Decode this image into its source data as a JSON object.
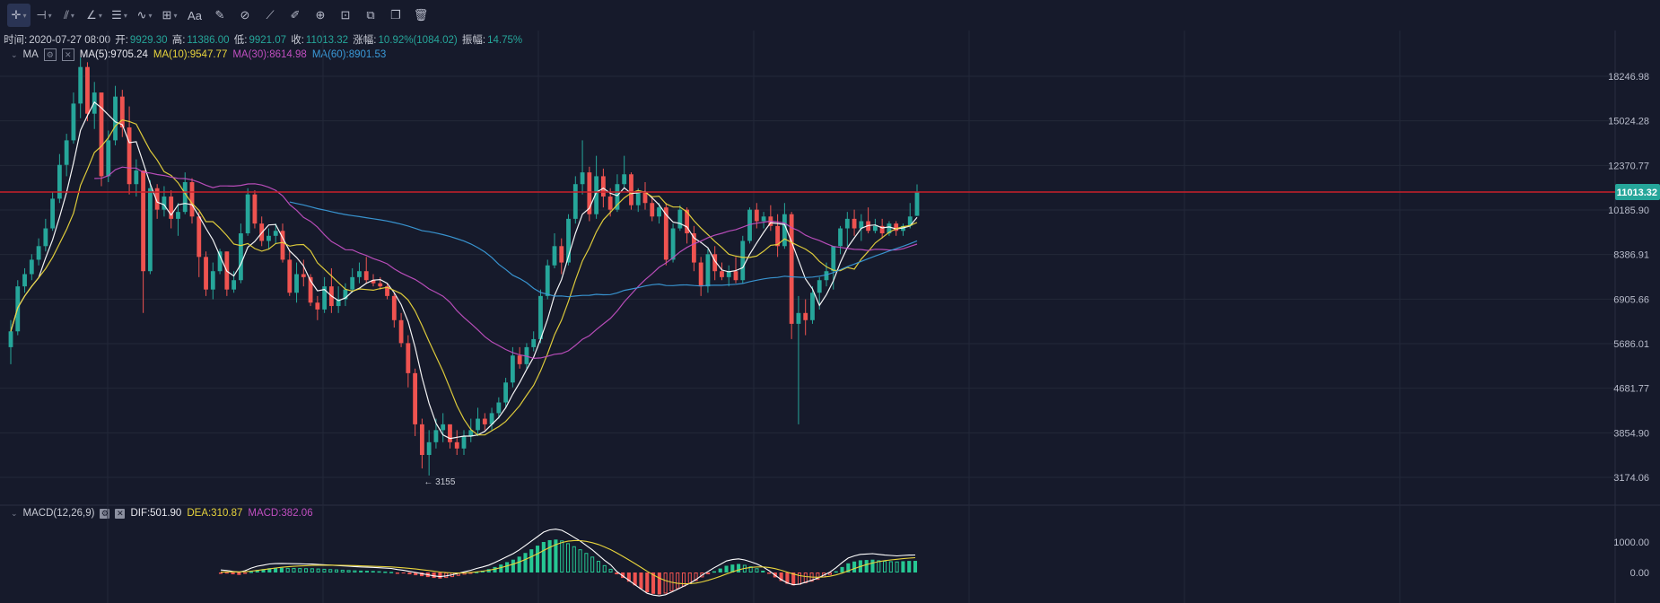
{
  "toolbar": {
    "items": [
      {
        "name": "crosshair-icon",
        "glyph": "✛",
        "dropdown": true
      },
      {
        "name": "horizontal-line-icon",
        "glyph": "⊣",
        "dropdown": true
      },
      {
        "name": "trend-lines-icon",
        "glyph": "⫽",
        "dropdown": true
      },
      {
        "name": "angle-icon",
        "glyph": "∠",
        "dropdown": true
      },
      {
        "name": "fib-lines-icon",
        "glyph": "☰",
        "dropdown": true
      },
      {
        "name": "patterns-icon",
        "glyph": "∿",
        "dropdown": true
      },
      {
        "name": "measure-icon",
        "glyph": "⊞",
        "dropdown": true
      },
      {
        "name": "text-icon",
        "glyph": "Aa",
        "dropdown": false
      },
      {
        "name": "brush-icon",
        "glyph": "✎",
        "dropdown": false
      },
      {
        "name": "magnet-icon",
        "glyph": "⊘",
        "dropdown": false
      },
      {
        "name": "ruler-icon",
        "glyph": "⟋",
        "dropdown": false
      },
      {
        "name": "pencil-icon",
        "glyph": "✐",
        "dropdown": false
      },
      {
        "name": "eye-icon",
        "glyph": "⊕",
        "dropdown": false
      },
      {
        "name": "lock-icon",
        "glyph": "⊡",
        "dropdown": false
      },
      {
        "name": "copy-icon",
        "glyph": "⧉",
        "dropdown": false
      },
      {
        "name": "duplicate-icon",
        "glyph": "❐",
        "dropdown": false
      },
      {
        "name": "trash-icon",
        "glyph": "🗑",
        "dropdown": false
      }
    ]
  },
  "info": {
    "time_label": "时间:",
    "time_value": "2020-07-27 08:00",
    "open_label": "开:",
    "open_value": "9929.30",
    "high_label": "高:",
    "high_value": "11386.00",
    "low_label": "低:",
    "low_value": "9921.07",
    "close_label": "收:",
    "close_value": "11013.32",
    "change_label": "涨幅:",
    "change_value": "10.92%(1084.02)",
    "amplitude_label": "振幅:",
    "amplitude_value": "14.75%"
  },
  "ma_legend": {
    "label": "MA",
    "ma5": "MA(5):9705.24",
    "ma10": "MA(10):9547.77",
    "ma30": "MA(30):8614.98",
    "ma60": "MA(60):8901.53"
  },
  "macd_legend": {
    "label": "MACD(12,26,9)",
    "dif": "DIF:501.90",
    "dea": "DEA:310.87",
    "macd": "MACD:382.06"
  },
  "colors": {
    "up": "#26a69a",
    "down": "#ef5350",
    "ma5": "#ffffff",
    "ma10": "#e8d43c",
    "ma30": "#c04fc0",
    "ma60": "#3a9ad8",
    "price_line": "#c8202a",
    "grid": "#232839",
    "macd_up": "#26c793",
    "macd_down": "#ef5350"
  },
  "chart_data": [
    {
      "type": "candlestick",
      "title": "",
      "y_ticks": [
        18246.98,
        15024.28,
        12370.77,
        10185.9,
        8386.91,
        6905.66,
        5686.01,
        4681.77,
        3854.9,
        3174.06
      ],
      "current_price_label": "11013.32",
      "current_price": 11013.32,
      "low_marker": "3155",
      "scale": "log",
      "ohlc_weekly": [
        [
          5600,
          6300,
          5200,
          6000
        ],
        [
          6000,
          7500,
          5900,
          7300
        ],
        [
          7300,
          7900,
          7100,
          7700
        ],
        [
          7700,
          8400,
          7500,
          8200
        ],
        [
          8200,
          9000,
          8000,
          8700
        ],
        [
          8700,
          9800,
          8500,
          9400
        ],
        [
          9400,
          11000,
          9300,
          10700
        ],
        [
          10700,
          13000,
          10500,
          12400
        ],
        [
          12400,
          14200,
          11800,
          13800
        ],
        [
          13800,
          17000,
          13600,
          16200
        ],
        [
          16200,
          19800,
          15200,
          19000
        ],
        [
          19000,
          19400,
          15000,
          15500
        ],
        [
          15500,
          17800,
          14500,
          17000
        ],
        [
          17000,
          16500,
          11300,
          11800
        ],
        [
          11800,
          14400,
          11500,
          13800
        ],
        [
          13800,
          17500,
          13500,
          16700
        ],
        [
          16700,
          17200,
          14000,
          14600
        ],
        [
          14600,
          16000,
          10900,
          11400
        ],
        [
          11400,
          12700,
          10800,
          12100
        ],
        [
          12100,
          11700,
          6500,
          7800
        ],
        [
          7800,
          11600,
          7700,
          11200
        ],
        [
          11200,
          11400,
          9800,
          10200
        ],
        [
          10200,
          11300,
          9900,
          10800
        ],
        [
          10800,
          11100,
          9400,
          9800
        ],
        [
          9800,
          10500,
          9100,
          10100
        ],
        [
          10100,
          12000,
          10000,
          11500
        ],
        [
          11500,
          11700,
          9600,
          9900
        ],
        [
          9900,
          10100,
          7600,
          8300
        ],
        [
          8300,
          8500,
          7000,
          7200
        ],
        [
          7200,
          8100,
          6900,
          7800
        ],
        [
          7800,
          8600,
          7700,
          8500
        ],
        [
          8500,
          8500,
          7000,
          7200
        ],
        [
          7200,
          7800,
          7100,
          7500
        ],
        [
          7500,
          9600,
          7400,
          9200
        ],
        [
          9200,
          11200,
          9100,
          10900
        ],
        [
          10900,
          11100,
          9400,
          9600
        ],
        [
          9600,
          9900,
          8700,
          8900
        ],
        [
          8900,
          9400,
          8600,
          9100
        ],
        [
          9100,
          9600,
          8800,
          9300
        ],
        [
          9300,
          9600,
          8100,
          8200
        ],
        [
          8200,
          8500,
          7000,
          7100
        ],
        [
          7100,
          8100,
          6800,
          7700
        ],
        [
          7700,
          8200,
          7300,
          7600
        ],
        [
          7600,
          7700,
          6700,
          6800
        ],
        [
          6800,
          7000,
          6300,
          6600
        ],
        [
          6600,
          7600,
          6500,
          7300
        ],
        [
          7300,
          7900,
          6500,
          6700
        ],
        [
          6700,
          7300,
          6500,
          6900
        ],
        [
          6900,
          7400,
          6700,
          7200
        ],
        [
          7200,
          7900,
          7100,
          7600
        ],
        [
          7600,
          8100,
          7400,
          7800
        ],
        [
          7800,
          8300,
          7400,
          7500
        ],
        [
          7500,
          7700,
          7300,
          7400
        ],
        [
          7400,
          7600,
          7200,
          7300
        ],
        [
          7300,
          7400,
          6900,
          7000
        ],
        [
          7000,
          7100,
          6100,
          6300
        ],
        [
          6300,
          6500,
          5600,
          5700
        ],
        [
          5700,
          5900,
          4700,
          5000
        ],
        [
          5000,
          5100,
          3800,
          4000
        ],
        [
          4000,
          4100,
          3300,
          3500
        ],
        [
          3500,
          3900,
          3200,
          3700
        ],
        [
          3700,
          4100,
          3600,
          3900
        ],
        [
          3900,
          4200,
          3700,
          4000
        ],
        [
          4000,
          4000,
          3600,
          3700
        ],
        [
          3700,
          3900,
          3500,
          3600
        ],
        [
          3600,
          3900,
          3500,
          3800
        ],
        [
          3800,
          4100,
          3700,
          3900
        ],
        [
          3900,
          4300,
          3800,
          4100
        ],
        [
          4100,
          4200,
          3900,
          4000
        ],
        [
          4000,
          4300,
          3900,
          4200
        ],
        [
          4200,
          4500,
          4100,
          4400
        ],
        [
          4400,
          4900,
          4300,
          4800
        ],
        [
          4800,
          5600,
          4700,
          5400
        ],
        [
          5400,
          5600,
          5100,
          5200
        ],
        [
          5200,
          5700,
          5100,
          5600
        ],
        [
          5600,
          6000,
          5500,
          5800
        ],
        [
          5800,
          7200,
          5700,
          7000
        ],
        [
          7000,
          8200,
          6900,
          8000
        ],
        [
          8000,
          9200,
          7900,
          8700
        ],
        [
          8700,
          9000,
          7700,
          8100
        ],
        [
          8100,
          10000,
          8000,
          9800
        ],
        [
          9800,
          11800,
          9600,
          11400
        ],
        [
          11400,
          13800,
          10900,
          12000
        ],
        [
          12000,
          12300,
          9700,
          10000
        ],
        [
          10000,
          12900,
          9800,
          11800
        ],
        [
          11800,
          12200,
          10300,
          10800
        ],
        [
          10800,
          11200,
          9900,
          10200
        ],
        [
          10200,
          11900,
          10100,
          11400
        ],
        [
          11400,
          12900,
          11200,
          11900
        ],
        [
          11900,
          12000,
          10200,
          10400
        ],
        [
          10400,
          11200,
          10100,
          11000
        ],
        [
          11000,
          11500,
          10200,
          10500
        ],
        [
          10500,
          10800,
          9700,
          9900
        ],
        [
          9900,
          10500,
          9600,
          10300
        ],
        [
          10300,
          10500,
          8000,
          8200
        ],
        [
          8200,
          9600,
          8100,
          9400
        ],
        [
          9400,
          10400,
          9300,
          10200
        ],
        [
          10200,
          10300,
          8800,
          9200
        ],
        [
          9200,
          9500,
          7800,
          8100
        ],
        [
          8100,
          8300,
          7000,
          7300
        ],
        [
          7300,
          8600,
          7100,
          8400
        ],
        [
          8400,
          8700,
          7500,
          7800
        ],
        [
          7800,
          8100,
          7500,
          7600
        ],
        [
          7600,
          8000,
          7300,
          7800
        ],
        [
          7800,
          8300,
          7400,
          7500
        ],
        [
          7500,
          9100,
          7400,
          8900
        ],
        [
          8900,
          10300,
          8800,
          10200
        ],
        [
          10200,
          10500,
          9400,
          9700
        ],
        [
          9700,
          10100,
          9400,
          9900
        ],
        [
          9900,
          10400,
          9300,
          9500
        ],
        [
          9500,
          10000,
          8300,
          8700
        ],
        [
          8700,
          10500,
          8600,
          10000
        ],
        [
          10000,
          10100,
          5800,
          6200
        ],
        [
          6200,
          7000,
          4000,
          6500
        ],
        [
          6500,
          6900,
          5900,
          6300
        ],
        [
          6300,
          7300,
          6200,
          7100
        ],
        [
          7100,
          7600,
          6600,
          7500
        ],
        [
          7500,
          8100,
          7300,
          7800
        ],
        [
          7800,
          8000,
          7200,
          8700
        ],
        [
          8700,
          9500,
          8400,
          9400
        ],
        [
          9400,
          10100,
          8700,
          9800
        ],
        [
          9800,
          10200,
          9100,
          9400
        ],
        [
          9400,
          10000,
          8900,
          9700
        ],
        [
          9700,
          10300,
          9200,
          9300
        ],
        [
          9300,
          9800,
          9200,
          9500
        ],
        [
          9500,
          9800,
          9000,
          9200
        ],
        [
          9200,
          9700,
          9100,
          9600
        ],
        [
          9600,
          9700,
          9100,
          9300
        ],
        [
          9300,
          9600,
          9100,
          9500
        ],
        [
          9500,
          10500,
          9400,
          9900
        ],
        [
          9929.3,
          11386,
          9921.07,
          11013.32
        ]
      ]
    },
    {
      "type": "macd",
      "title": "MACD(12,26,9)",
      "y_ticks": [
        1000.0,
        0.0
      ],
      "histogram": [
        -20,
        -35,
        -60,
        -80,
        -40,
        30,
        80,
        110,
        140,
        150,
        155,
        150,
        148,
        145,
        140,
        138,
        130,
        120,
        110,
        100,
        90,
        80,
        70,
        62,
        55,
        48,
        40,
        30,
        20,
        -10,
        -30,
        -60,
        -90,
        -120,
        -150,
        -180,
        -200,
        -180,
        -150,
        -110,
        -70,
        -30,
        20,
        60,
        110,
        180,
        260,
        340,
        420,
        520,
        640,
        760,
        880,
        1000,
        1060,
        1080,
        1050,
        960,
        860,
        760,
        640,
        520,
        380,
        240,
        120,
        -60,
        -180,
        -300,
        -420,
        -540,
        -650,
        -700,
        -720,
        -690,
        -620,
        -540,
        -460,
        -380,
        -280,
        -160,
        -60,
        40,
        130,
        220,
        260,
        280,
        250,
        200,
        140,
        60,
        -40,
        -160,
        -280,
        -370,
        -420,
        -400,
        -350,
        -300,
        -240,
        -160,
        -80,
        40,
        180,
        300,
        360,
        400,
        410,
        420,
        400,
        380,
        370,
        360,
        370,
        380,
        382
      ]
    }
  ]
}
